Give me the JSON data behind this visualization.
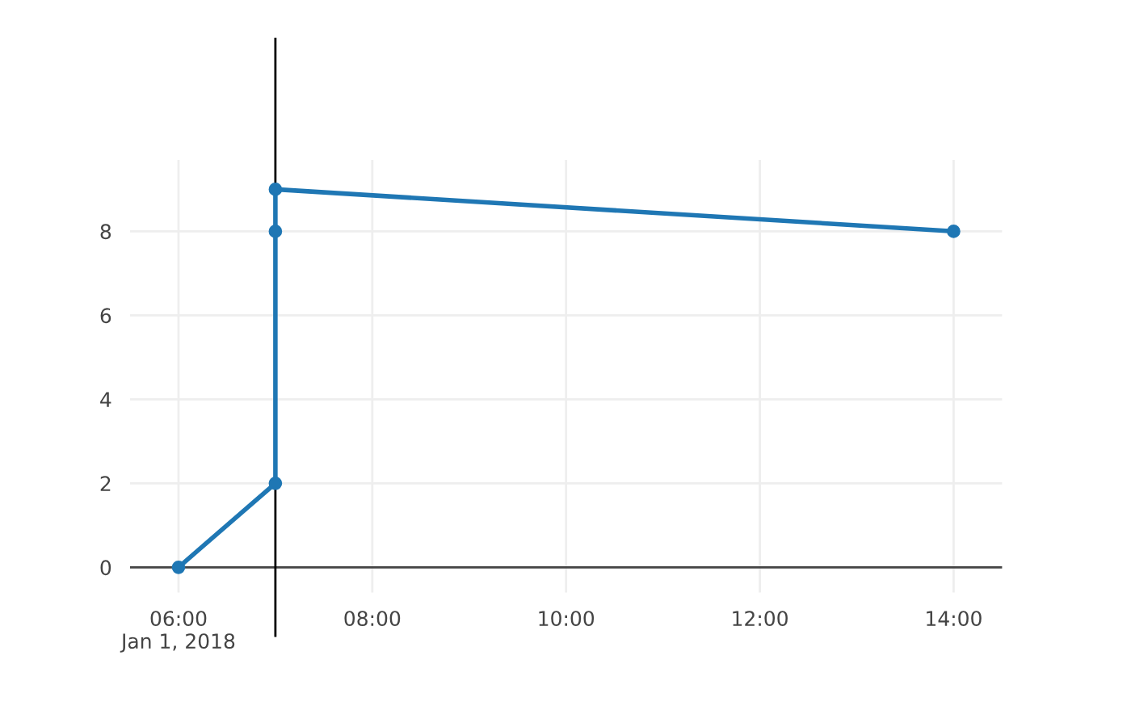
{
  "chart_data": {
    "type": "line",
    "x": [
      "2018-01-01T06:00",
      "2018-01-01T07:00",
      "2018-01-01T07:00",
      "2018-01-01T07:00",
      "2018-01-01T14:00"
    ],
    "series": [
      {
        "color": "#1f77b4",
        "values": [
          0,
          2,
          8,
          9,
          8
        ]
      }
    ],
    "xlim": [
      "2018-01-01T05:30",
      "2018-01-01T14:30"
    ],
    "xticks": [
      {
        "value": "2018-01-01T06:00",
        "label": "06:00\nJan 1, 2018"
      },
      {
        "value": "2018-01-01T08:00",
        "label": "08:00"
      },
      {
        "value": "2018-01-01T10:00",
        "label": "10:00"
      },
      {
        "value": "2018-01-01T12:00",
        "label": "12:00"
      },
      {
        "value": "2018-01-01T14:00",
        "label": "14:00"
      }
    ],
    "ylim": [
      -0.6,
      9.7
    ],
    "yticks": [
      0,
      2,
      4,
      6,
      8
    ],
    "ref_lines": [
      {
        "axis": "x",
        "value": "2018-01-01T07:00",
        "color": "#000000"
      }
    ],
    "grid": true,
    "marker": "circle",
    "line_style": "solid",
    "legend": false
  }
}
